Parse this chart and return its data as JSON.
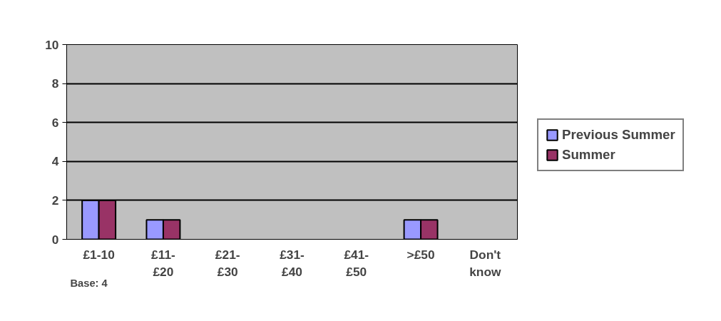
{
  "chart_data": {
    "type": "bar",
    "categories": [
      "£1-10",
      "£11-\n£20",
      "£21-\n£30",
      "£31-\n£40",
      "£41-\n£50",
      ">£50",
      "Don't\nknow"
    ],
    "series": [
      {
        "name": "Previous Summer",
        "color": "#9999ff",
        "values": [
          2,
          1,
          0,
          0,
          0,
          1,
          0
        ]
      },
      {
        "name": "Summer",
        "color": "#993366",
        "values": [
          2,
          1,
          0,
          0,
          0,
          1,
          0
        ]
      }
    ],
    "ylim": [
      0,
      10
    ],
    "yticks": [
      0,
      2,
      4,
      6,
      8,
      10
    ],
    "grid": "y",
    "legend": "right",
    "annotations": [
      "Base: 4"
    ]
  }
}
